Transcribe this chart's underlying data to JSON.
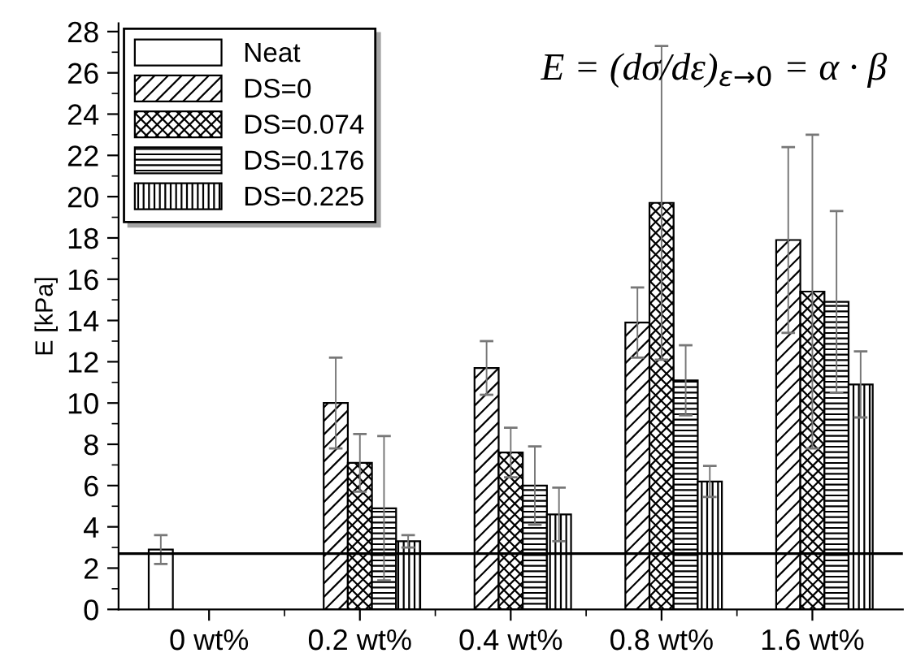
{
  "chart_data": {
    "type": "bar",
    "ylabel": "E [kPa]",
    "categories": [
      "0 wt%",
      "0.2 wt%",
      "0.4 wt%",
      "0.8 wt%",
      "1.6 wt%"
    ],
    "series": [
      {
        "name": "Neat",
        "color": "#ffffff",
        "values": [
          2.9,
          null,
          null,
          null,
          null
        ],
        "errors": [
          0.7,
          null,
          null,
          null,
          null
        ]
      },
      {
        "name": "DS=0",
        "color": "#000000",
        "values": [
          null,
          10.0,
          11.7,
          13.9,
          17.9
        ],
        "errors": [
          null,
          2.2,
          1.3,
          1.7,
          4.5
        ]
      },
      {
        "name": "DS=0.074",
        "color": "#000000",
        "values": [
          null,
          7.1,
          7.6,
          19.7,
          15.4
        ],
        "errors": [
          null,
          1.4,
          1.2,
          7.6,
          7.6
        ]
      },
      {
        "name": "DS=0.176",
        "color": "#000000",
        "values": [
          null,
          4.9,
          6.0,
          11.1,
          14.9
        ],
        "errors": [
          null,
          3.5,
          1.9,
          1.7,
          4.4
        ]
      },
      {
        "name": "DS=0.225",
        "color": "#000000",
        "values": [
          null,
          3.3,
          4.6,
          6.2,
          10.9
        ],
        "errors": [
          null,
          0.3,
          1.3,
          0.75,
          1.6
        ]
      }
    ],
    "ylim": [
      0,
      28.4
    ],
    "yticks": [
      0,
      2,
      4,
      6,
      8,
      10,
      12,
      14,
      16,
      18,
      20,
      22,
      24,
      26,
      28
    ],
    "ref_lines": [
      {
        "axis": "y",
        "value": 2.7,
        "color": "#000000"
      }
    ],
    "annotations": [
      "E = (dσ/dε)$_{ε→0}$ = α · β"
    ],
    "legend": "top left",
    "grid": false
  }
}
